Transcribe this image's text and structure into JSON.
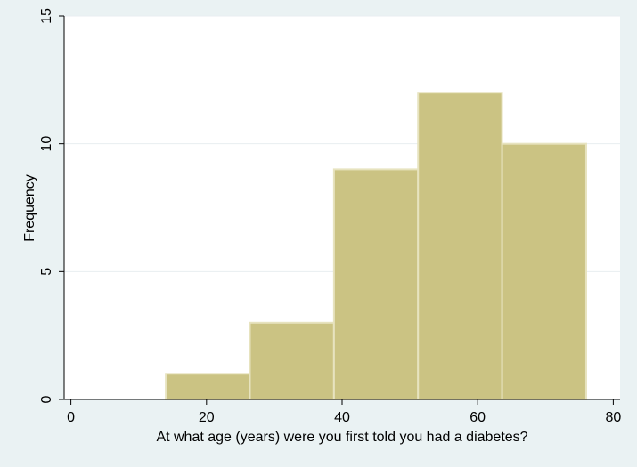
{
  "chart_data": {
    "type": "bar",
    "subtype": "histogram",
    "bins": [
      {
        "start": 14.0,
        "end": 26.4,
        "value": 1
      },
      {
        "start": 26.4,
        "end": 38.8,
        "value": 3
      },
      {
        "start": 38.8,
        "end": 51.2,
        "value": 9
      },
      {
        "start": 51.2,
        "end": 63.6,
        "value": 12
      },
      {
        "start": 63.6,
        "end": 76.0,
        "value": 10
      }
    ],
    "title": "",
    "xlabel": "At what age (years) were you first told you had a diabetes?",
    "ylabel": "Frequency",
    "xlim": [
      -1,
      81
    ],
    "ylim": [
      0,
      15
    ],
    "xticks": [
      0,
      20,
      40,
      60,
      80
    ],
    "yticks": [
      0,
      5,
      10,
      15
    ],
    "grid": "horizontal",
    "legend": "none",
    "colors": {
      "bar_fill": "#cbc383",
      "bar_stroke": "#e7e3bf",
      "background": "#eaf2f3",
      "plot_area": "#ffffff",
      "grid": "#e8eef0",
      "axis": "#000000"
    }
  }
}
